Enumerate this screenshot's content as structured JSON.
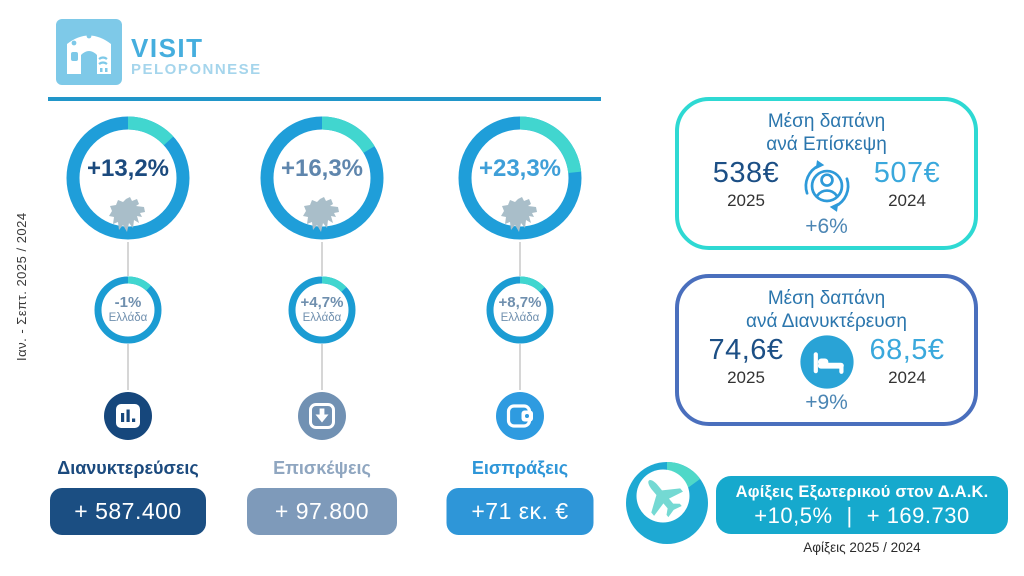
{
  "brand": {
    "visit": "VISIT",
    "peloponnese": "PELOPONNESE"
  },
  "period_label": "Ιαν. - Σεπτ. 2025 / 2024",
  "colors": {
    "ring_blue": "#1f9ed9",
    "ring_teal": "#41d6cf",
    "rule_blue": "#2196c9",
    "navy": "#1b4a7e",
    "blue_gray": "#7e9aba",
    "bright_blue": "#2e96d8",
    "panel_teal_border": "#2ed9d3",
    "panel_blue_border": "#4a6fbd",
    "arrivals_teal": "#16a9cd"
  },
  "kpis": [
    {
      "pct": "+13,2%",
      "pct_value": 13.2,
      "pct_color": "#1b4a7e",
      "greece_pct": "-1%",
      "greece_label": "Ελλάδα",
      "greece_ring_pct": 12,
      "label": "Διανυκτερεύσεις",
      "label_color": "#1b4a7e",
      "amount": "+ 587.400",
      "box_color": "#1b4e82",
      "icon": "bar-chart-icon",
      "icon_bg": "#16477c"
    },
    {
      "pct": "+16,3%",
      "pct_value": 16.3,
      "pct_color": "#5f86ad",
      "greece_pct": "+4,7%",
      "greece_label": "Ελλάδα",
      "greece_ring_pct": 13,
      "label": "Επισκέψεις",
      "label_color": "#8fa6c0",
      "amount": "+ 97.800",
      "box_color": "#7e9aba",
      "icon": "arrow-down-box-icon",
      "icon_bg": "#7191b3"
    },
    {
      "pct": "+23,3%",
      "pct_value": 23.3,
      "pct_color": "#3f9fd8",
      "greece_pct": "+8,7%",
      "greece_label": "Ελλάδα",
      "greece_ring_pct": 13,
      "label": "Εισπράξεις",
      "label_color": "#2e96d8",
      "amount": "+71 εκ. €",
      "box_color": "#2e96d8",
      "icon": "wallet-icon",
      "icon_bg": "#2e9be0"
    }
  ],
  "panels": [
    {
      "title_line1": "Μέση δαπάνη",
      "title_line2": "ανά Επίσκεψη",
      "current": "538€",
      "current_year": "2025",
      "previous": "507€",
      "previous_year": "2024",
      "change": "+6%",
      "border_color": "#2ed9d3",
      "icon": "visitor-sync-icon"
    },
    {
      "title_line1": "Μέση δαπάνη",
      "title_line2": "ανά Διανυκτέρευση",
      "current": "74,6€",
      "current_year": "2025",
      "previous": "68,5€",
      "previous_year": "2024",
      "change": "+9%",
      "border_color": "#4a6fbd",
      "icon": "bed-icon"
    }
  ],
  "arrivals": {
    "title": "Αφίξεις Εξωτερικού στον Δ.Α.Κ.",
    "pct": "+10,5%",
    "divider": "|",
    "amount": "+ 169.730",
    "caption": "Αφίξεις 2025 / 2024",
    "pie_pct": 15
  },
  "chart_data": {
    "type": "pie",
    "title": "Visit Peloponnese — Ιαν. - Σεπτ. 2025 / 2024",
    "series": [
      {
        "name": "Διανυκτερεύσεις",
        "change_pct": 13.2,
        "greece_change_pct": -1.0,
        "absolute_change": "+ 587.400"
      },
      {
        "name": "Επισκέψεις",
        "change_pct": 16.3,
        "greece_change_pct": 4.7,
        "absolute_change": "+ 97.800"
      },
      {
        "name": "Εισπράξεις",
        "change_pct": 23.3,
        "greece_change_pct": 8.7,
        "absolute_change": "+71 εκ. €"
      },
      {
        "name": "Μέση δαπάνη ανά Επίσκεψη",
        "values": {
          "2025": 538,
          "2024": 507
        },
        "change_pct": 6
      },
      {
        "name": "Μέση δαπάνη ανά Διανυκτέρευση",
        "values": {
          "2025": 74.6,
          "2024": 68.5
        },
        "change_pct": 9
      },
      {
        "name": "Αφίξεις Εξωτερικού στον Δ.Α.Κ.",
        "change_pct": 10.5,
        "absolute_change": "+ 169.730"
      }
    ],
    "legend_position": "none",
    "grid": false
  }
}
